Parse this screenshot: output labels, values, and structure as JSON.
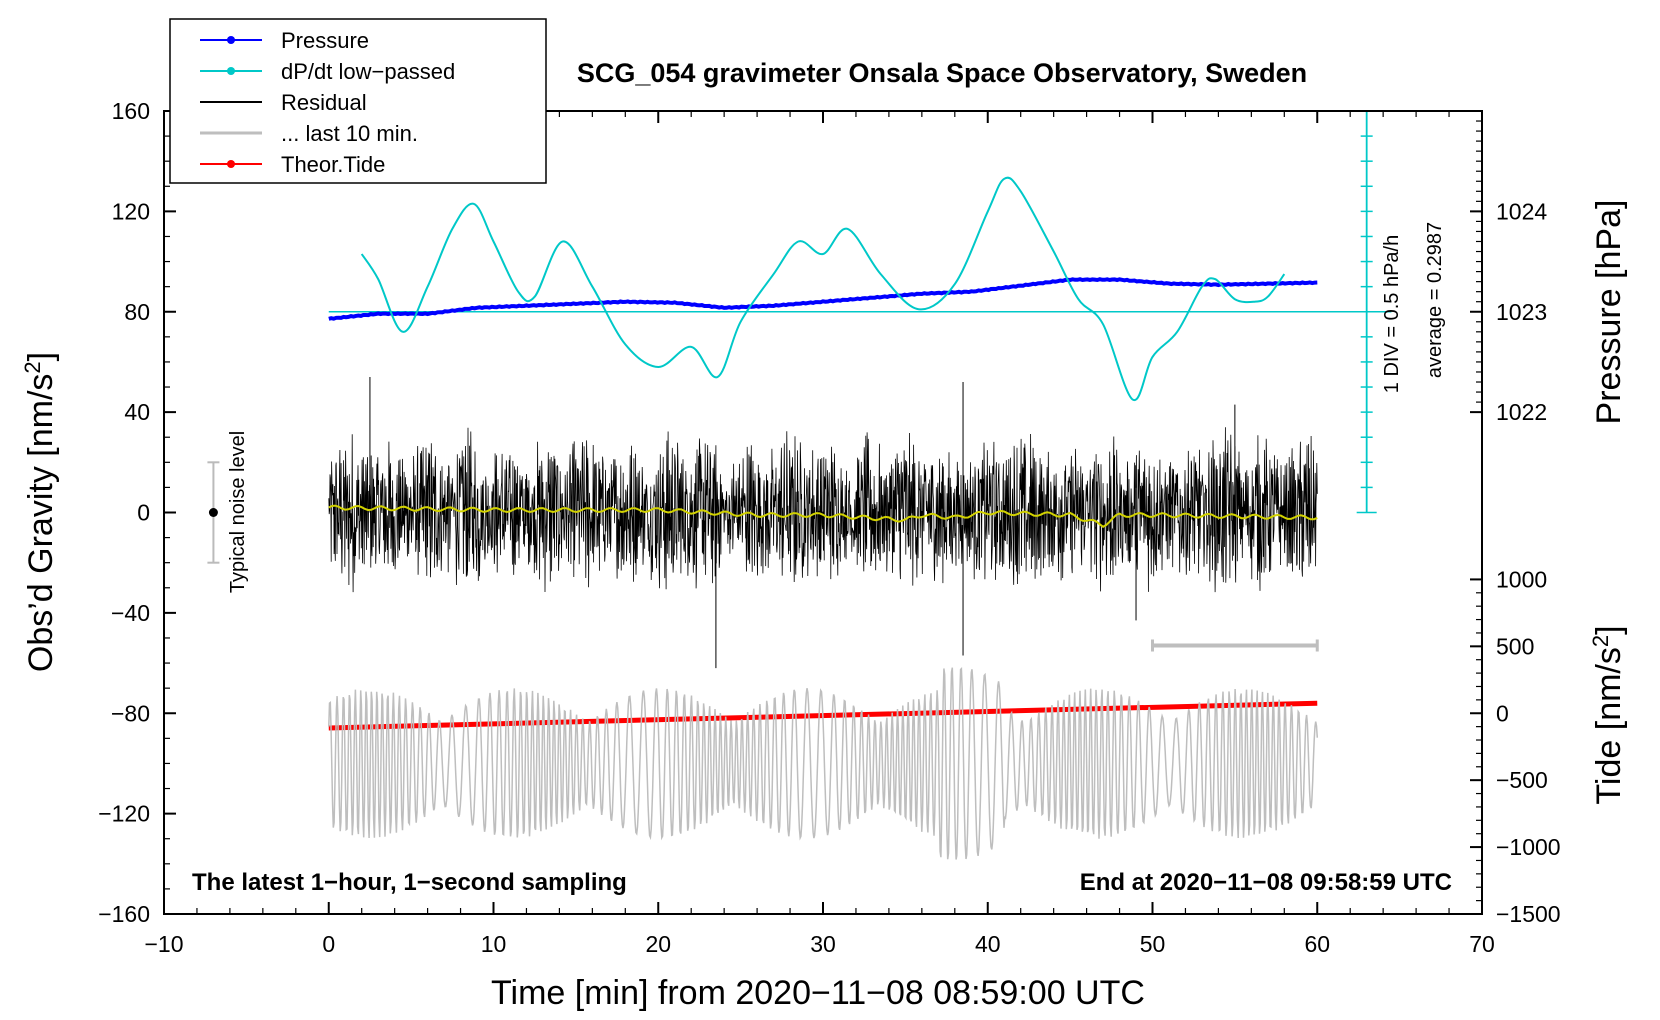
{
  "chart_data": {
    "type": "line",
    "title": "SCG_054 gravimeter Onsala Space Observatory, Sweden",
    "xlabel": "Time [min] from 2020−11−08 08:59:00 UTC",
    "ylabel_left": "Obs’d Gravity [nm/s",
    "ylabel_left_sup": "2",
    "ylabel_left_end": "]",
    "ylabel_right_pressure": "Pressure [hPa]",
    "ylabel_right_tide": "Tide [nm/s",
    "ylabel_right_tide_sup": "2",
    "ylabel_right_tide_end": "]",
    "xlim": [
      -10,
      70
    ],
    "ylim": [
      -160,
      160
    ],
    "x_ticks": [
      "−10",
      "0",
      "10",
      "20",
      "30",
      "40",
      "50",
      "60",
      "70"
    ],
    "x_tick_values": [
      -10,
      0,
      10,
      20,
      30,
      40,
      50,
      60,
      70
    ],
    "y_ticks": [
      "160",
      "120",
      "80",
      "40",
      "0",
      "−40",
      "−80",
      "−120",
      "−160"
    ],
    "y_tick_values": [
      160,
      120,
      80,
      40,
      0,
      -40,
      -80,
      -120,
      -160
    ],
    "pressure_ticks": [
      "1024",
      "1023",
      "1022"
    ],
    "pressure_tick_values": [
      1024,
      1023,
      1022
    ],
    "pressure_axis": {
      "value_at_gravity_80": 1023,
      "hpa_per_40_gravity": 1
    },
    "tide_ticks": [
      "1000",
      "500",
      "0",
      "−500",
      "−1000",
      "−1500"
    ],
    "tide_tick_values": [
      1000,
      500,
      0,
      -500,
      -1000,
      -1500
    ],
    "tide_axis": {
      "value_at_gravity_minus_160": -1500,
      "units_per_gravity_unit": 18.75
    },
    "legend": [
      {
        "label": "Pressure",
        "color": "#0000ff",
        "marker": true
      },
      {
        "label": "dP/dt low−passed",
        "color": "#00c8c8",
        "marker": true
      },
      {
        "label": "Residual",
        "color": "#000000",
        "marker": false
      },
      {
        "label": "... last 10 min.",
        "color": "#bebebe",
        "marker": false
      },
      {
        "label": "Theor.Tide",
        "color": "#ff0000",
        "marker": true
      }
    ],
    "series": [
      {
        "name": "Pressure",
        "units": "hPa",
        "color": "#0000ff",
        "x": [
          0,
          3,
          6,
          9,
          12,
          15,
          18,
          21,
          24,
          27,
          30,
          33,
          36,
          39,
          42,
          45,
          48,
          51,
          54,
          57,
          60
        ],
        "values": [
          1022.93,
          1022.98,
          1022.98,
          1023.04,
          1023.06,
          1023.08,
          1023.1,
          1023.09,
          1023.04,
          1023.06,
          1023.1,
          1023.14,
          1023.18,
          1023.2,
          1023.26,
          1023.32,
          1023.32,
          1023.28,
          1023.27,
          1023.28,
          1023.29
        ]
      },
      {
        "name": "dP/dt low−passed",
        "units": "gravity-scale (baseline 80 = average)",
        "color": "#00c8c8",
        "x": [
          2,
          3,
          4.5,
          6,
          7.5,
          8.8,
          10,
          11.5,
          12.5,
          14.2,
          16,
          18,
          20,
          22,
          23.6,
          25,
          27,
          28.5,
          30,
          31.5,
          33.5,
          35.8,
          38,
          40,
          41,
          42,
          44,
          45.5,
          47,
          48.8,
          50,
          51.5,
          53,
          53.8,
          55,
          56.2,
          57,
          58
        ],
        "values": [
          103,
          93,
          72,
          90,
          113,
          123,
          108,
          88,
          86,
          108,
          90,
          67,
          58,
          66,
          54,
          76,
          95,
          108,
          103,
          113,
          95,
          81,
          91,
          120,
          133,
          128,
          104,
          85,
          75,
          45,
          62,
          72,
          90,
          93,
          85,
          84,
          86,
          95
        ]
      },
      {
        "name": "Residual",
        "units": "nm/s^2",
        "color": "#000000",
        "x_range": [
          0,
          60
        ],
        "envelope_amplitude": 30,
        "peak_excursions": [
          {
            "x": 2.5,
            "value": 54
          },
          {
            "x": 23.5,
            "value": -62
          },
          {
            "x": 38.5,
            "value": 52
          },
          {
            "x": 38.5,
            "value": -57
          },
          {
            "x": 49,
            "value": -43
          },
          {
            "x": 55,
            "value": 43
          }
        ]
      },
      {
        "name": "Residual smoothed",
        "units": "nm/s^2",
        "color": "#d2d200",
        "x": [
          0,
          10,
          20,
          26,
          30,
          35,
          36,
          38,
          40,
          45,
          47,
          48,
          50,
          60
        ],
        "values": [
          2,
          1,
          1,
          -1,
          -1,
          -3,
          -1,
          -2,
          0,
          -1,
          -5,
          -1,
          -1,
          -2
        ]
      },
      {
        "name": "... last 10 min.",
        "units": "nm/s^2 (offset -100)",
        "color": "#bebebe",
        "x_range": [
          0,
          60
        ],
        "center": -100,
        "amplitude": 25,
        "bracket": [
          50,
          60
        ]
      },
      {
        "name": "Theor.Tide",
        "units": "nm/s^2 (tide axis)",
        "color": "#ff0000",
        "x": [
          0,
          60
        ],
        "values": [
          -110,
          75
        ]
      }
    ],
    "noise_level": {
      "label": "Typical noise level",
      "x": -7,
      "center": 0,
      "half_range": 20
    },
    "scale_bar": {
      "label": "1 DIV = 0.5 hPa/h",
      "average_label": "average = 0.2987",
      "x": 63,
      "top": 160,
      "bottom": 0,
      "divisions": 16
    },
    "annotation_left": "The latest 1−hour, 1−second sampling",
    "annotation_right": "End at 2020−11−08 09:58:59 UTC"
  }
}
